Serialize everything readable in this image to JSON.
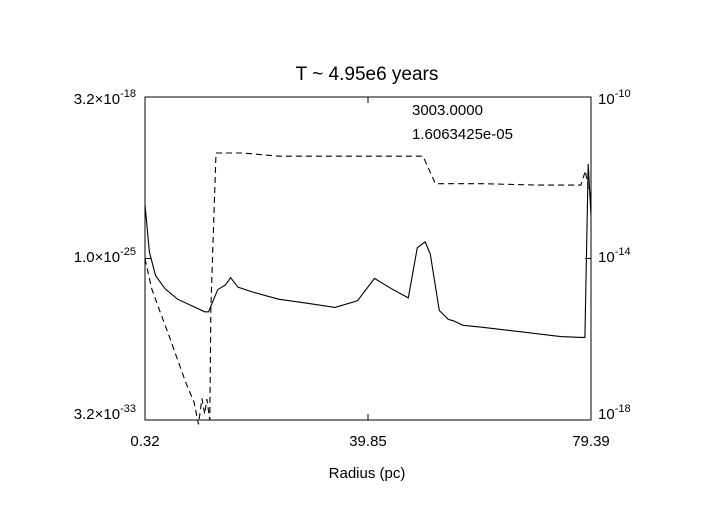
{
  "chart_data": {
    "type": "line",
    "title": "T ~ 4.95e6 years",
    "xlabel": "Radius (pc)",
    "ylabel": "",
    "xlim": [
      0.32,
      79.39
    ],
    "x_ticks": [
      "0.32",
      "39.85",
      "79.39"
    ],
    "left_axis": {
      "scale": "log",
      "ylim": [
        3.2e-33,
        3.2e-18
      ],
      "tick_mantissas": [
        "3.2",
        "1.0",
        "3.2"
      ],
      "tick_exponents": [
        "-33",
        "-25",
        "-18"
      ]
    },
    "right_axis": {
      "scale": "log",
      "ylim": [
        1e-18,
        1e-10
      ],
      "tick_exponents": [
        "-18",
        "-14",
        "-10"
      ]
    },
    "annotations": [
      "3003.0000",
      "1.6063425e-05"
    ],
    "series": [
      {
        "style": "solid",
        "axis": "left",
        "x": [
          0.32,
          1.1,
          2.2,
          3.9,
          6.1,
          8.6,
          10.9,
          11.6,
          13.2,
          14.6,
          15.5,
          16.8,
          19.4,
          24.0,
          29.0,
          34.0,
          38.0,
          41.0,
          44.0,
          47.0,
          48.6,
          50.0,
          50.9,
          52.5,
          54.1,
          55.0,
          56.7,
          60.0,
          67.0,
          74.0,
          77.6,
          78.3,
          78.9,
          79.39
        ],
        "y": [
          3.2e-23,
          2e-25,
          1.6e-26,
          3.9e-27,
          1.3e-27,
          6.5e-28,
          3.4e-28,
          3.4e-28,
          3.6e-27,
          6e-27,
          1.3e-26,
          4.7e-27,
          2.8e-27,
          1.3e-27,
          8.5e-28,
          5.4e-28,
          1.1e-27,
          1.2e-26,
          4e-27,
          1.5e-27,
          3.2e-25,
          6e-25,
          1.6e-25,
          3.9e-28,
          1.5e-28,
          1.3e-28,
          8e-29,
          6.5e-29,
          4e-29,
          2.4e-29,
          2.2e-29,
          2.2e-29,
          2.5e-21,
          1e-23
        ]
      },
      {
        "style": "dashed",
        "axis": "left",
        "x": [
          0.32,
          1.5,
          3.0,
          4.5,
          6.1,
          7.6,
          9.0,
          9.8,
          10.4,
          10.9,
          11.3,
          11.8,
          12.0,
          12.9,
          15.0,
          17.6,
          24.0,
          30.0,
          38.0,
          46.0,
          49.6,
          51.8,
          56.7,
          60.0,
          70.0,
          75.0,
          77.6,
          78.4,
          78.9,
          79.39
        ],
        "y": [
          1e-25,
          4e-27,
          3.4e-28,
          3e-29,
          2e-30,
          1.6e-31,
          2.2e-32,
          2e-33,
          3.2e-32,
          6e-33,
          3e-32,
          3.2e-33,
          6e-28,
          8e-21,
          8e-21,
          8e-21,
          5.7e-21,
          5.7e-21,
          5.7e-21,
          5.7e-21,
          5.7e-21,
          3e-22,
          3e-22,
          3e-22,
          2.6e-22,
          2.6e-22,
          2.6e-22,
          1.2e-21,
          2e-22,
          8e-23
        ]
      }
    ]
  }
}
